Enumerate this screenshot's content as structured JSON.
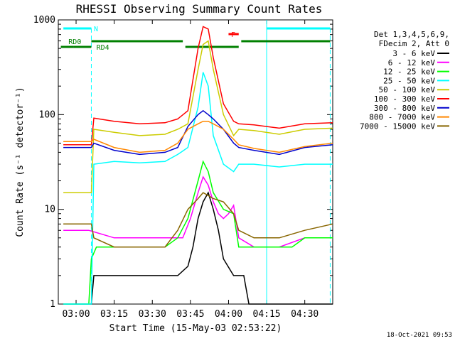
{
  "chart_data": {
    "type": "line",
    "title": "RHESSI Observing Summary Count Rates",
    "xlabel": "Start Time (15-May-03 02:53:22)",
    "ylabel": "Count Rate (s⁻¹ detector⁻¹)",
    "y_scale": "log",
    "x_range_minutes": [
      -7,
      101
    ],
    "ylim": [
      1,
      1000
    ],
    "x_ticks": [
      {
        "label": "03:00",
        "t": 0
      },
      {
        "label": "03:15",
        "t": 15
      },
      {
        "label": "03:30",
        "t": 30
      },
      {
        "label": "03:45",
        "t": 45
      },
      {
        "label": "04:00",
        "t": 60
      },
      {
        "label": "04:15",
        "t": 75
      },
      {
        "label": "04:30",
        "t": 90
      }
    ],
    "y_ticks": [
      {
        "label": "1",
        "v": 1
      },
      {
        "label": "10",
        "v": 10
      },
      {
        "label": "100",
        "v": 100
      },
      {
        "label": "1000",
        "v": 1000
      }
    ],
    "legend_header": [
      "Det 1,3,4,5,6,9,",
      "FDecim 2, Att 0"
    ],
    "series": [
      {
        "name": "3 - 6 keV",
        "color": "#000000",
        "points": [
          [
            -5,
            1
          ],
          [
            6,
            1
          ],
          [
            7,
            2
          ],
          [
            10,
            2
          ],
          [
            20,
            2
          ],
          [
            30,
            2
          ],
          [
            40,
            2
          ],
          [
            44,
            2.5
          ],
          [
            46,
            4
          ],
          [
            48,
            8
          ],
          [
            50,
            12
          ],
          [
            52,
            15
          ],
          [
            54,
            10
          ],
          [
            56,
            6
          ],
          [
            58,
            3
          ],
          [
            62,
            2
          ],
          [
            66,
            2
          ],
          [
            68,
            1
          ],
          [
            101,
            1
          ]
        ]
      },
      {
        "name": "6 - 12 keV",
        "color": "#ff00ff",
        "points": [
          [
            -5,
            6
          ],
          [
            5,
            6
          ],
          [
            15,
            5
          ],
          [
            25,
            5
          ],
          [
            35,
            5
          ],
          [
            42,
            5
          ],
          [
            45,
            8
          ],
          [
            48,
            15
          ],
          [
            50,
            22
          ],
          [
            52,
            18
          ],
          [
            54,
            12
          ],
          [
            56,
            9
          ],
          [
            58,
            8
          ],
          [
            60,
            9
          ],
          [
            62,
            11
          ],
          [
            64,
            5
          ],
          [
            70,
            4
          ],
          [
            80,
            4
          ],
          [
            90,
            5
          ],
          [
            101,
            5
          ]
        ]
      },
      {
        "name": "12 - 25 keV",
        "color": "#00ff00",
        "points": [
          [
            -5,
            1
          ],
          [
            5,
            1
          ],
          [
            6,
            3
          ],
          [
            8,
            4
          ],
          [
            15,
            4
          ],
          [
            25,
            4
          ],
          [
            35,
            4
          ],
          [
            40,
            5
          ],
          [
            44,
            8
          ],
          [
            48,
            20
          ],
          [
            50,
            32
          ],
          [
            52,
            25
          ],
          [
            54,
            15
          ],
          [
            58,
            10
          ],
          [
            62,
            9
          ],
          [
            64,
            4
          ],
          [
            75,
            4
          ],
          [
            85,
            4
          ],
          [
            90,
            5
          ],
          [
            101,
            5
          ]
        ]
      },
      {
        "name": "25 - 50 keV",
        "color": "#00ffff",
        "points": [
          [
            -5,
            1
          ],
          [
            6,
            1
          ],
          [
            7,
            30
          ],
          [
            15,
            32
          ],
          [
            25,
            31
          ],
          [
            35,
            32
          ],
          [
            40,
            38
          ],
          [
            44,
            45
          ],
          [
            48,
            120
          ],
          [
            50,
            280
          ],
          [
            52,
            200
          ],
          [
            54,
            60
          ],
          [
            58,
            30
          ],
          [
            62,
            25
          ],
          [
            64,
            30
          ],
          [
            70,
            30
          ],
          [
            80,
            28
          ],
          [
            90,
            30
          ],
          [
            101,
            30
          ]
        ]
      },
      {
        "name": "50 - 100 keV",
        "color": "#cccc00",
        "points": [
          [
            -5,
            15
          ],
          [
            6,
            15
          ],
          [
            7,
            70
          ],
          [
            15,
            65
          ],
          [
            25,
            60
          ],
          [
            35,
            62
          ],
          [
            40,
            70
          ],
          [
            44,
            80
          ],
          [
            48,
            300
          ],
          [
            50,
            550
          ],
          [
            52,
            600
          ],
          [
            54,
            300
          ],
          [
            58,
            100
          ],
          [
            62,
            60
          ],
          [
            64,
            70
          ],
          [
            70,
            68
          ],
          [
            80,
            62
          ],
          [
            90,
            70
          ],
          [
            101,
            72
          ]
        ]
      },
      {
        "name": "100 - 300 keV",
        "color": "#ff0000",
        "points": [
          [
            -5,
            48
          ],
          [
            6,
            48
          ],
          [
            7,
            92
          ],
          [
            15,
            85
          ],
          [
            25,
            80
          ],
          [
            35,
            82
          ],
          [
            40,
            90
          ],
          [
            44,
            110
          ],
          [
            48,
            500
          ],
          [
            50,
            850
          ],
          [
            52,
            800
          ],
          [
            54,
            400
          ],
          [
            58,
            130
          ],
          [
            62,
            85
          ],
          [
            64,
            80
          ],
          [
            70,
            78
          ],
          [
            80,
            72
          ],
          [
            90,
            80
          ],
          [
            101,
            82
          ]
        ]
      },
      {
        "name": "300 - 800 keV",
        "color": "#0000cc",
        "points": [
          [
            -5,
            45
          ],
          [
            6,
            45
          ],
          [
            7,
            50
          ],
          [
            15,
            42
          ],
          [
            25,
            38
          ],
          [
            35,
            40
          ],
          [
            40,
            45
          ],
          [
            44,
            75
          ],
          [
            48,
            100
          ],
          [
            50,
            110
          ],
          [
            52,
            100
          ],
          [
            54,
            90
          ],
          [
            58,
            70
          ],
          [
            62,
            50
          ],
          [
            64,
            45
          ],
          [
            70,
            42
          ],
          [
            80,
            38
          ],
          [
            90,
            45
          ],
          [
            101,
            48
          ]
        ]
      },
      {
        "name": "800 - 7000 keV",
        "color": "#ff8800",
        "points": [
          [
            -5,
            52
          ],
          [
            6,
            52
          ],
          [
            7,
            55
          ],
          [
            15,
            45
          ],
          [
            25,
            40
          ],
          [
            35,
            42
          ],
          [
            40,
            50
          ],
          [
            44,
            70
          ],
          [
            48,
            80
          ],
          [
            50,
            85
          ],
          [
            52,
            85
          ],
          [
            54,
            80
          ],
          [
            58,
            70
          ],
          [
            62,
            55
          ],
          [
            64,
            48
          ],
          [
            70,
            44
          ],
          [
            80,
            40
          ],
          [
            90,
            46
          ],
          [
            101,
            50
          ]
        ]
      },
      {
        "name": "7000 - 15000 keV",
        "color": "#886600",
        "points": [
          [
            -5,
            7
          ],
          [
            6,
            7
          ],
          [
            7,
            5
          ],
          [
            15,
            4
          ],
          [
            25,
            4
          ],
          [
            35,
            4
          ],
          [
            40,
            6
          ],
          [
            44,
            10
          ],
          [
            48,
            13
          ],
          [
            50,
            15
          ],
          [
            52,
            14
          ],
          [
            54,
            13
          ],
          [
            58,
            12
          ],
          [
            62,
            9
          ],
          [
            64,
            6
          ],
          [
            70,
            5
          ],
          [
            80,
            5
          ],
          [
            90,
            6
          ],
          [
            101,
            7
          ]
        ]
      }
    ],
    "annotations": [
      {
        "label": "N",
        "color": "#00ffff",
        "t": 7
      },
      {
        "label": "RD0",
        "color": "#008000",
        "t": -3
      },
      {
        "label": "RD4",
        "color": "#008000",
        "t": 8
      },
      {
        "label": "F",
        "color": "#ff0000",
        "t": 61
      }
    ]
  },
  "footer_date": "18-Oct-2021 09:53"
}
